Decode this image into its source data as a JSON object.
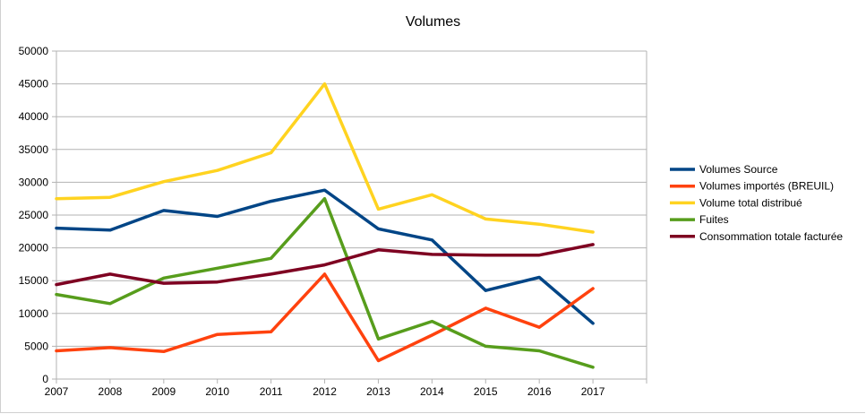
{
  "chart_data": {
    "type": "line",
    "title": "Volumes",
    "xlabel": "",
    "ylabel": "",
    "x": [
      "2007",
      "2008",
      "2009",
      "2010",
      "2011",
      "2012",
      "2013",
      "2014",
      "2015",
      "2016",
      "2017"
    ],
    "ylim": [
      0,
      50000
    ],
    "yticks": [
      "0",
      "5000",
      "10000",
      "15000",
      "20000",
      "25000",
      "30000",
      "35000",
      "40000",
      "45000",
      "50000"
    ],
    "grid": true,
    "legend_position": "right",
    "series": [
      {
        "name": "Volumes Source",
        "color": "#004586",
        "values": [
          23000,
          22700,
          25700,
          24800,
          27100,
          28800,
          22900,
          21200,
          13500,
          15500,
          8500
        ]
      },
      {
        "name": "Volumes importés (BREUIL)",
        "color": "#ff420e",
        "values": [
          4300,
          4800,
          4200,
          6800,
          7200,
          16000,
          2800,
          6700,
          10800,
          7900,
          13800
        ]
      },
      {
        "name": "Volume total distribué",
        "color": "#ffd320",
        "values": [
          27500,
          27700,
          30100,
          31800,
          34500,
          45000,
          25900,
          28100,
          24400,
          23600,
          22400
        ]
      },
      {
        "name": "Fuites",
        "color": "#579d1c",
        "values": [
          12900,
          11500,
          15400,
          16900,
          18400,
          27500,
          6100,
          8800,
          5000,
          4300,
          1800
        ]
      },
      {
        "name": "Consommation totale facturée",
        "color": "#7e0021",
        "values": [
          14400,
          16000,
          14600,
          14800,
          16000,
          17400,
          19700,
          19000,
          18900,
          18900,
          20500
        ]
      }
    ]
  }
}
